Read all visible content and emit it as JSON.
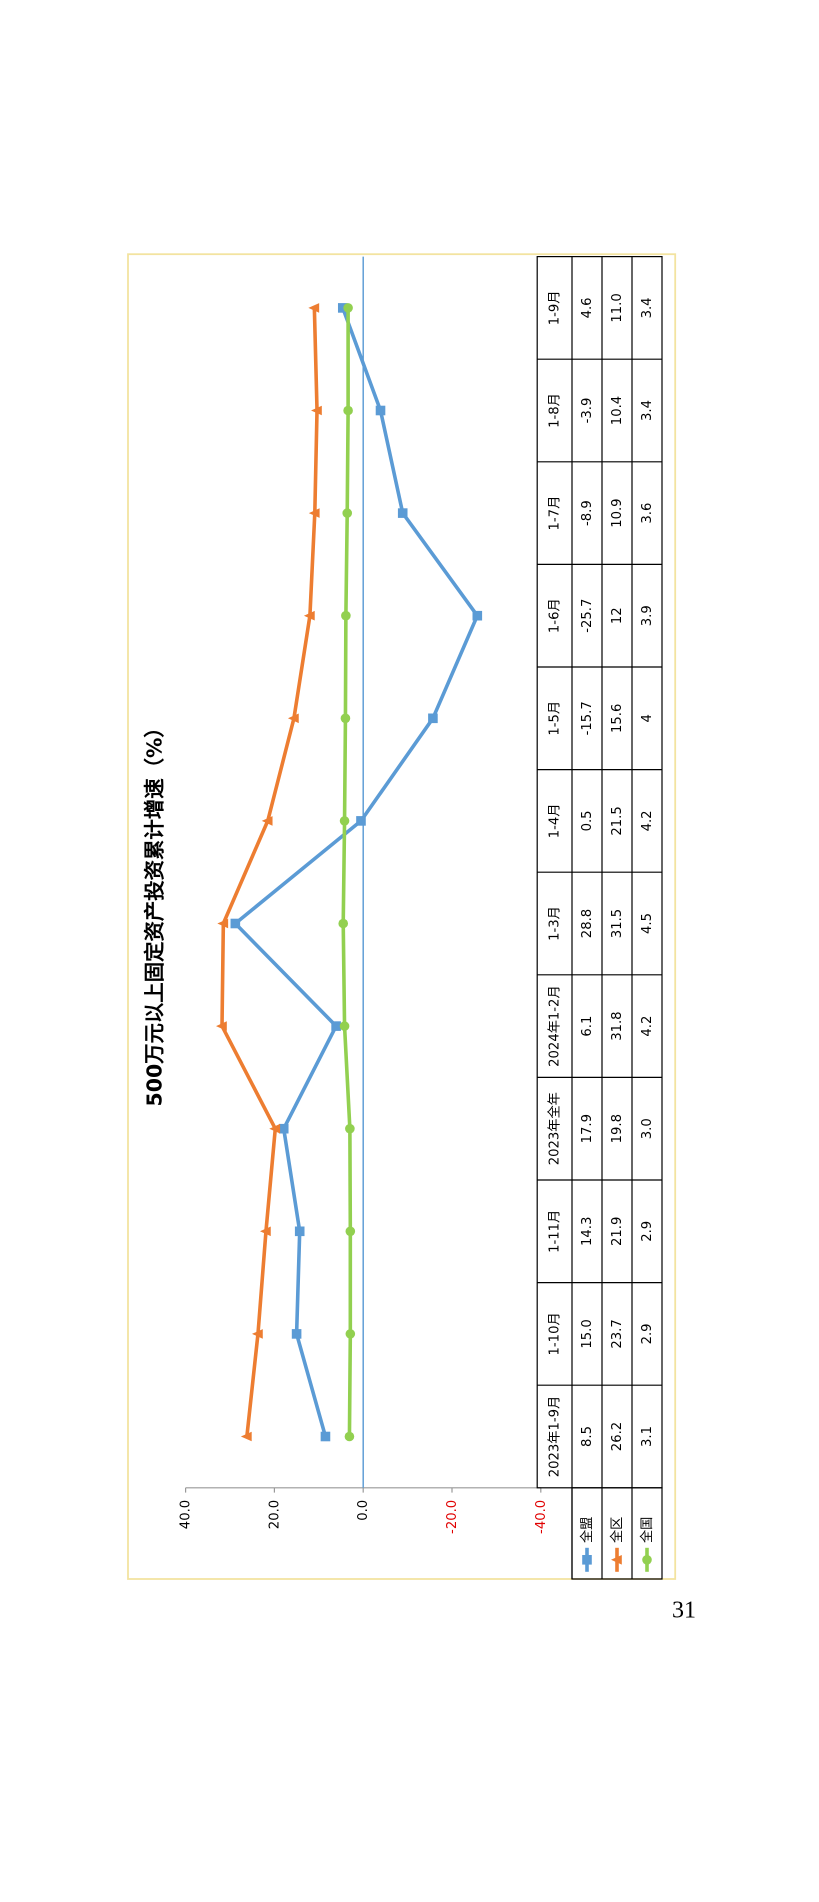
{
  "chart_data": {
    "type": "line",
    "title": "500万元以上固定资产投资累计增速（%）",
    "categories": [
      "2023年1-9月",
      "1-10月",
      "1-11月",
      "2023年全年",
      "2024年1-2月",
      "1-3月",
      "1-4月",
      "1-5月",
      "1-6月",
      "1-7月",
      "1-8月",
      "1-9月"
    ],
    "series": [
      {
        "name": "全盟",
        "color": "#5b9bd5",
        "marker": "square",
        "values": [
          8.5,
          15.0,
          14.3,
          17.9,
          6.1,
          28.8,
          0.5,
          -15.7,
          -25.7,
          -8.9,
          -3.9,
          4.6
        ],
        "value_labels": [
          "8.5",
          "15.0",
          "14.3",
          "17.9",
          "6.1",
          "28.8",
          "0.5",
          "-15.7",
          "-25.7",
          "-8.9",
          "-3.9",
          "4.6"
        ]
      },
      {
        "name": "全区",
        "color": "#ed7d31",
        "marker": "triangle",
        "values": [
          26.2,
          23.7,
          21.9,
          19.8,
          31.8,
          31.5,
          21.5,
          15.6,
          12,
          10.9,
          10.4,
          11.0
        ],
        "value_labels": [
          "26.2",
          "23.7",
          "21.9",
          "19.8",
          "31.8",
          "31.5",
          "21.5",
          "15.6",
          "12",
          "10.9",
          "10.4",
          "11.0"
        ]
      },
      {
        "name": "全国",
        "color": "#92d050",
        "marker": "circle",
        "values": [
          3.1,
          2.9,
          2.9,
          3.0,
          4.2,
          4.5,
          4.2,
          4,
          3.9,
          3.6,
          3.4,
          3.4
        ],
        "value_labels": [
          "3.1",
          "2.9",
          "2.9",
          "3.0",
          "4.2",
          "4.5",
          "4.2",
          "4",
          "3.9",
          "3.6",
          "3.4",
          "3.4"
        ]
      }
    ],
    "ylim": [
      -40,
      40
    ],
    "yticks": [
      {
        "value": 40,
        "label": "40.0"
      },
      {
        "value": 20,
        "label": "20.0"
      },
      {
        "value": 0,
        "label": "0.0"
      },
      {
        "value": -20,
        "label": "-20.0"
      },
      {
        "value": -40,
        "label": "-40.0"
      }
    ],
    "data_table": true
  },
  "page_number": "31"
}
